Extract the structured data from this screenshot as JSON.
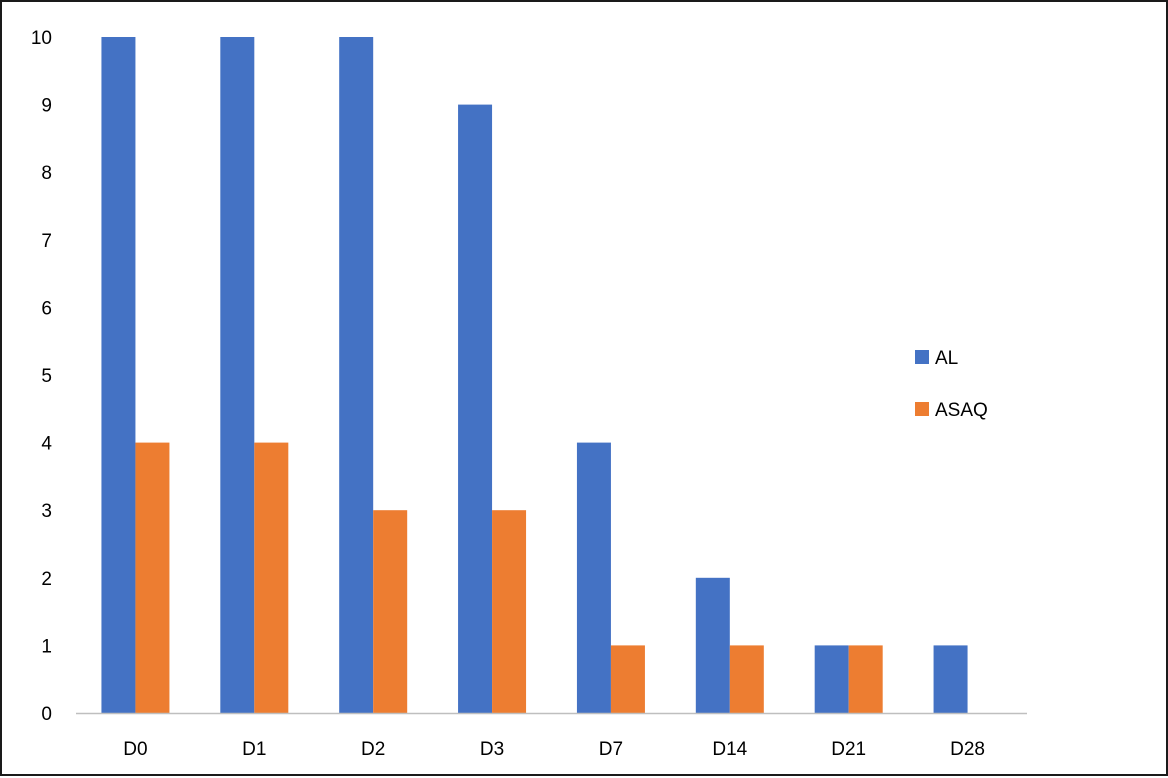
{
  "chart_data": {
    "type": "bar",
    "categories": [
      "D0",
      "D1",
      "D2",
      "D3",
      "D7",
      "D14",
      "D21",
      "D28"
    ],
    "series": [
      {
        "name": "AL",
        "values": [
          10,
          10,
          10,
          9,
          4,
          2,
          1,
          1
        ]
      },
      {
        "name": "ASAQ",
        "values": [
          4,
          4,
          3,
          3,
          1,
          1,
          1,
          0
        ]
      }
    ],
    "title": "",
    "xlabel": "",
    "ylabel": "",
    "ylim": [
      0,
      10
    ],
    "yticks": [
      "0",
      "1",
      "2",
      "3",
      "4",
      "5",
      "6",
      "7",
      "8",
      "9",
      "10"
    ],
    "grid": false,
    "legend_position": "right",
    "colors": {
      "AL": "#4472C4",
      "ASAQ": "#ED7D31",
      "axis": "#BFBFBF",
      "border": "#1a1a1a"
    }
  }
}
